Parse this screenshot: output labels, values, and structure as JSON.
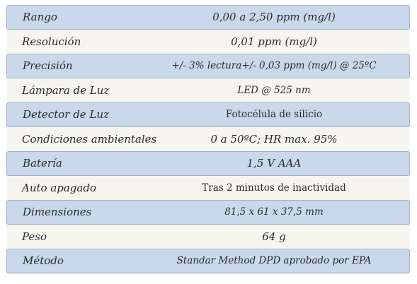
{
  "specs": [
    {
      "label": "Rango",
      "value": "0,00 a 2,50 ppm (mg/l)"
    },
    {
      "label": "Resolución",
      "value": "0,01 ppm (mg/l)"
    },
    {
      "label": "Precisión",
      "value": "+/- 3% lectura+/- 0,03 ppm (mg/l) @ 25ºC"
    },
    {
      "label": "Lámpara de Luz",
      "value": "LED @ 525 nm"
    },
    {
      "label": "Detector de Luz",
      "value": "Fotocélula de silicio"
    },
    {
      "label": "Condiciones ambientales",
      "value": "0 a 50ºC; HR max. 95%"
    },
    {
      "label": "Batería",
      "value": "1,5 V AAA"
    },
    {
      "label": "Auto apagado",
      "value": "Tras 2 minutos de inactividad"
    },
    {
      "label": "Dimensiones",
      "value": "81,5 x 61 x 37,5 mm"
    },
    {
      "label": "Peso",
      "value": "64 g"
    },
    {
      "label": "Método",
      "value": "Standar Method DPD aprobado por EPA"
    }
  ],
  "colors": {
    "shaded_row": "#c9d8ea",
    "plain_row": "#f6f5ee",
    "text": "#2a2a2a"
  }
}
